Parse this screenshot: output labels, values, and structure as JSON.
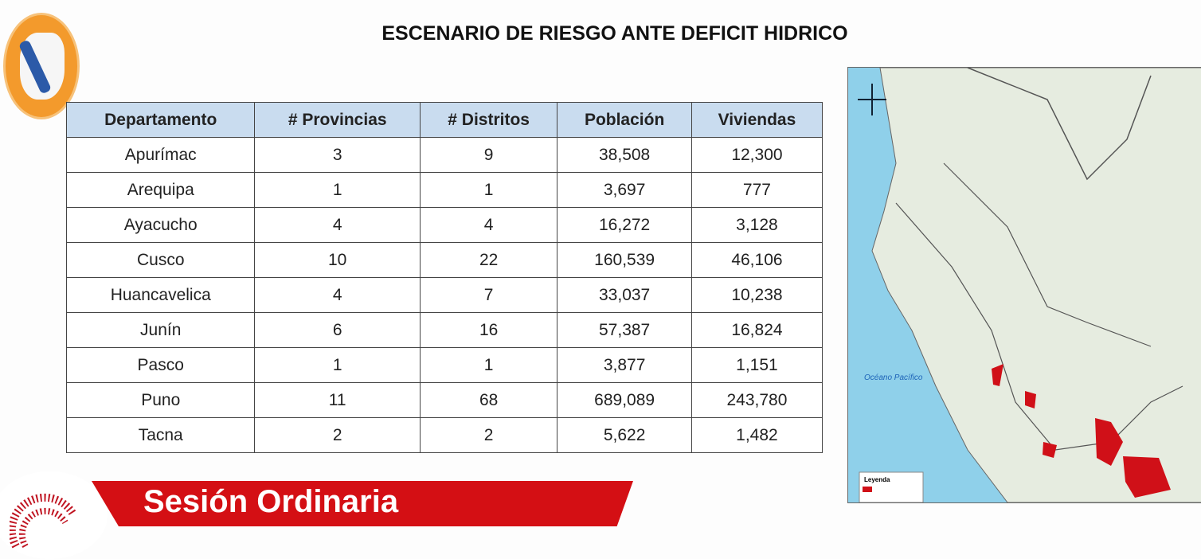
{
  "title": "ESCENARIO DE RIESGO ANTE DEFICIT HIDRICO",
  "table": {
    "headers": [
      "Departamento",
      "# Provincias",
      "# Distritos",
      "Población",
      "Viviendas"
    ],
    "rows": [
      [
        "Apurímac",
        "3",
        "9",
        "38,508",
        "12,300"
      ],
      [
        "Arequipa",
        "1",
        "1",
        "3,697",
        "777"
      ],
      [
        "Ayacucho",
        "4",
        "4",
        "16,272",
        "3,128"
      ],
      [
        "Cusco",
        "10",
        "22",
        "160,539",
        "46,106"
      ],
      [
        "Huancavelica",
        "4",
        "7",
        "33,037",
        "10,238"
      ],
      [
        "Junín",
        "6",
        "16",
        "57,387",
        "16,824"
      ],
      [
        "Pasco",
        "1",
        "1",
        "3,877",
        "1,151"
      ],
      [
        "Puno",
        "11",
        "68",
        "689,089",
        "243,780"
      ],
      [
        "Tacna",
        "2",
        "2",
        "5,622",
        "1,482"
      ]
    ]
  },
  "map": {
    "ocean_label": "Océano Pacífico",
    "legend_title": "Leyenda",
    "colors": {
      "ocean": "#8fd0ea",
      "land": "#e6ece0",
      "risk": "#d01018"
    }
  },
  "banner": {
    "label": "Sesión Ordinaria",
    "color": "#d40f14"
  }
}
